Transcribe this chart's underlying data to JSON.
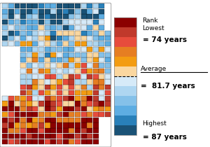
{
  "legend_colors": [
    "#8B0000",
    "#C0392B",
    "#E74C3C",
    "#E67E22",
    "#F39C12",
    "#FAD7A0",
    "#D6EAF8",
    "#AED6F1",
    "#85C1E9",
    "#5DADE2",
    "#2980B9",
    "#1A5276"
  ],
  "rank_lowest_label": "Rank\nLowest",
  "rank_lowest_value": "= 74 years",
  "average_label": "Average",
  "average_value": "=  81.7 years",
  "highest_label": "Highest",
  "highest_value": "= 87 years",
  "fig_bg": "#ffffff"
}
